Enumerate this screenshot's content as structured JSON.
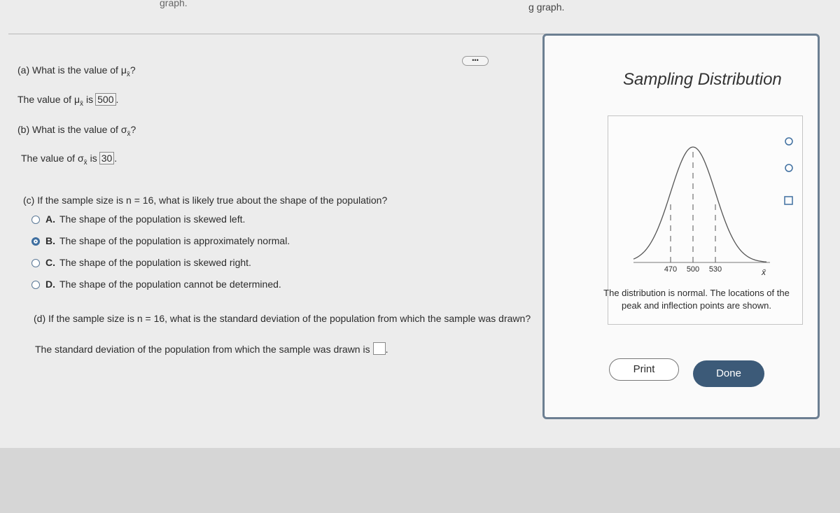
{
  "top_left_text": "graph.",
  "top_middle_text": "g graph.",
  "part_a": {
    "question": "(a) What is the value of μ",
    "question_sub": "x̄",
    "question_end": "?",
    "answer_prefix": "The value of μ",
    "answer_sub": "x̄",
    "answer_mid": "is",
    "answer": "500",
    "answer_end": "."
  },
  "part_b": {
    "question": "(b) What is the value of σ",
    "question_sub": "x̄",
    "question_end": "?",
    "answer_prefix": "The value of σ",
    "answer_sub": "x̄",
    "answer_mid": "is",
    "answer": "30",
    "answer_end": "."
  },
  "part_c": {
    "question": "(c) If the sample size is n = 16, what is likely true about the shape of the population?",
    "options": [
      {
        "letter": "A.",
        "text": "The shape of the population is skewed left.",
        "selected": false
      },
      {
        "letter": "B.",
        "text": "The shape of the population is approximately normal.",
        "selected": true
      },
      {
        "letter": "C.",
        "text": "The shape of the population is skewed right.",
        "selected": false
      },
      {
        "letter": "D.",
        "text": "The shape of the population cannot be determined.",
        "selected": false
      }
    ]
  },
  "part_d": {
    "question": "(d) If the sample size is n = 16, what is the standard deviation of the population from which the sample was drawn?",
    "answer_prefix": "The standard deviation of the population from which the sample was drawn is",
    "answer_end": "."
  },
  "popup": {
    "title": "Sampling Distribution",
    "graph": {
      "ticks": [
        470,
        500,
        530
      ],
      "axis_label": "x̄"
    },
    "caption": "The distribution is normal. The locations of the peak and inflection points are shown.",
    "print_button": "Print",
    "done_button": "Done"
  }
}
